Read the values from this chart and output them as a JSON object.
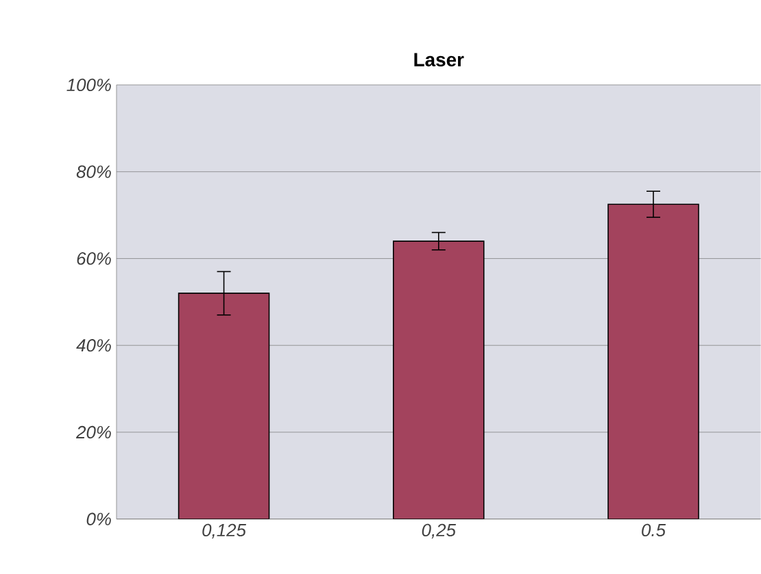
{
  "chart_data": {
    "type": "bar",
    "title": "Laser",
    "categories": [
      "0,125",
      "0,25",
      "0.5"
    ],
    "values": [
      52,
      64,
      72.5
    ],
    "errors": [
      5,
      2,
      3
    ],
    "color": "#a3435d",
    "ylim": [
      0,
      100
    ],
    "yticks": [
      {
        "value": 0,
        "label": "0%"
      },
      {
        "value": 20,
        "label": "20%"
      },
      {
        "value": 40,
        "label": "40%"
      },
      {
        "value": 60,
        "label": "60%"
      },
      {
        "value": 80,
        "label": "80%"
      },
      {
        "value": 100,
        "label": "100%"
      }
    ],
    "grid": "y"
  }
}
